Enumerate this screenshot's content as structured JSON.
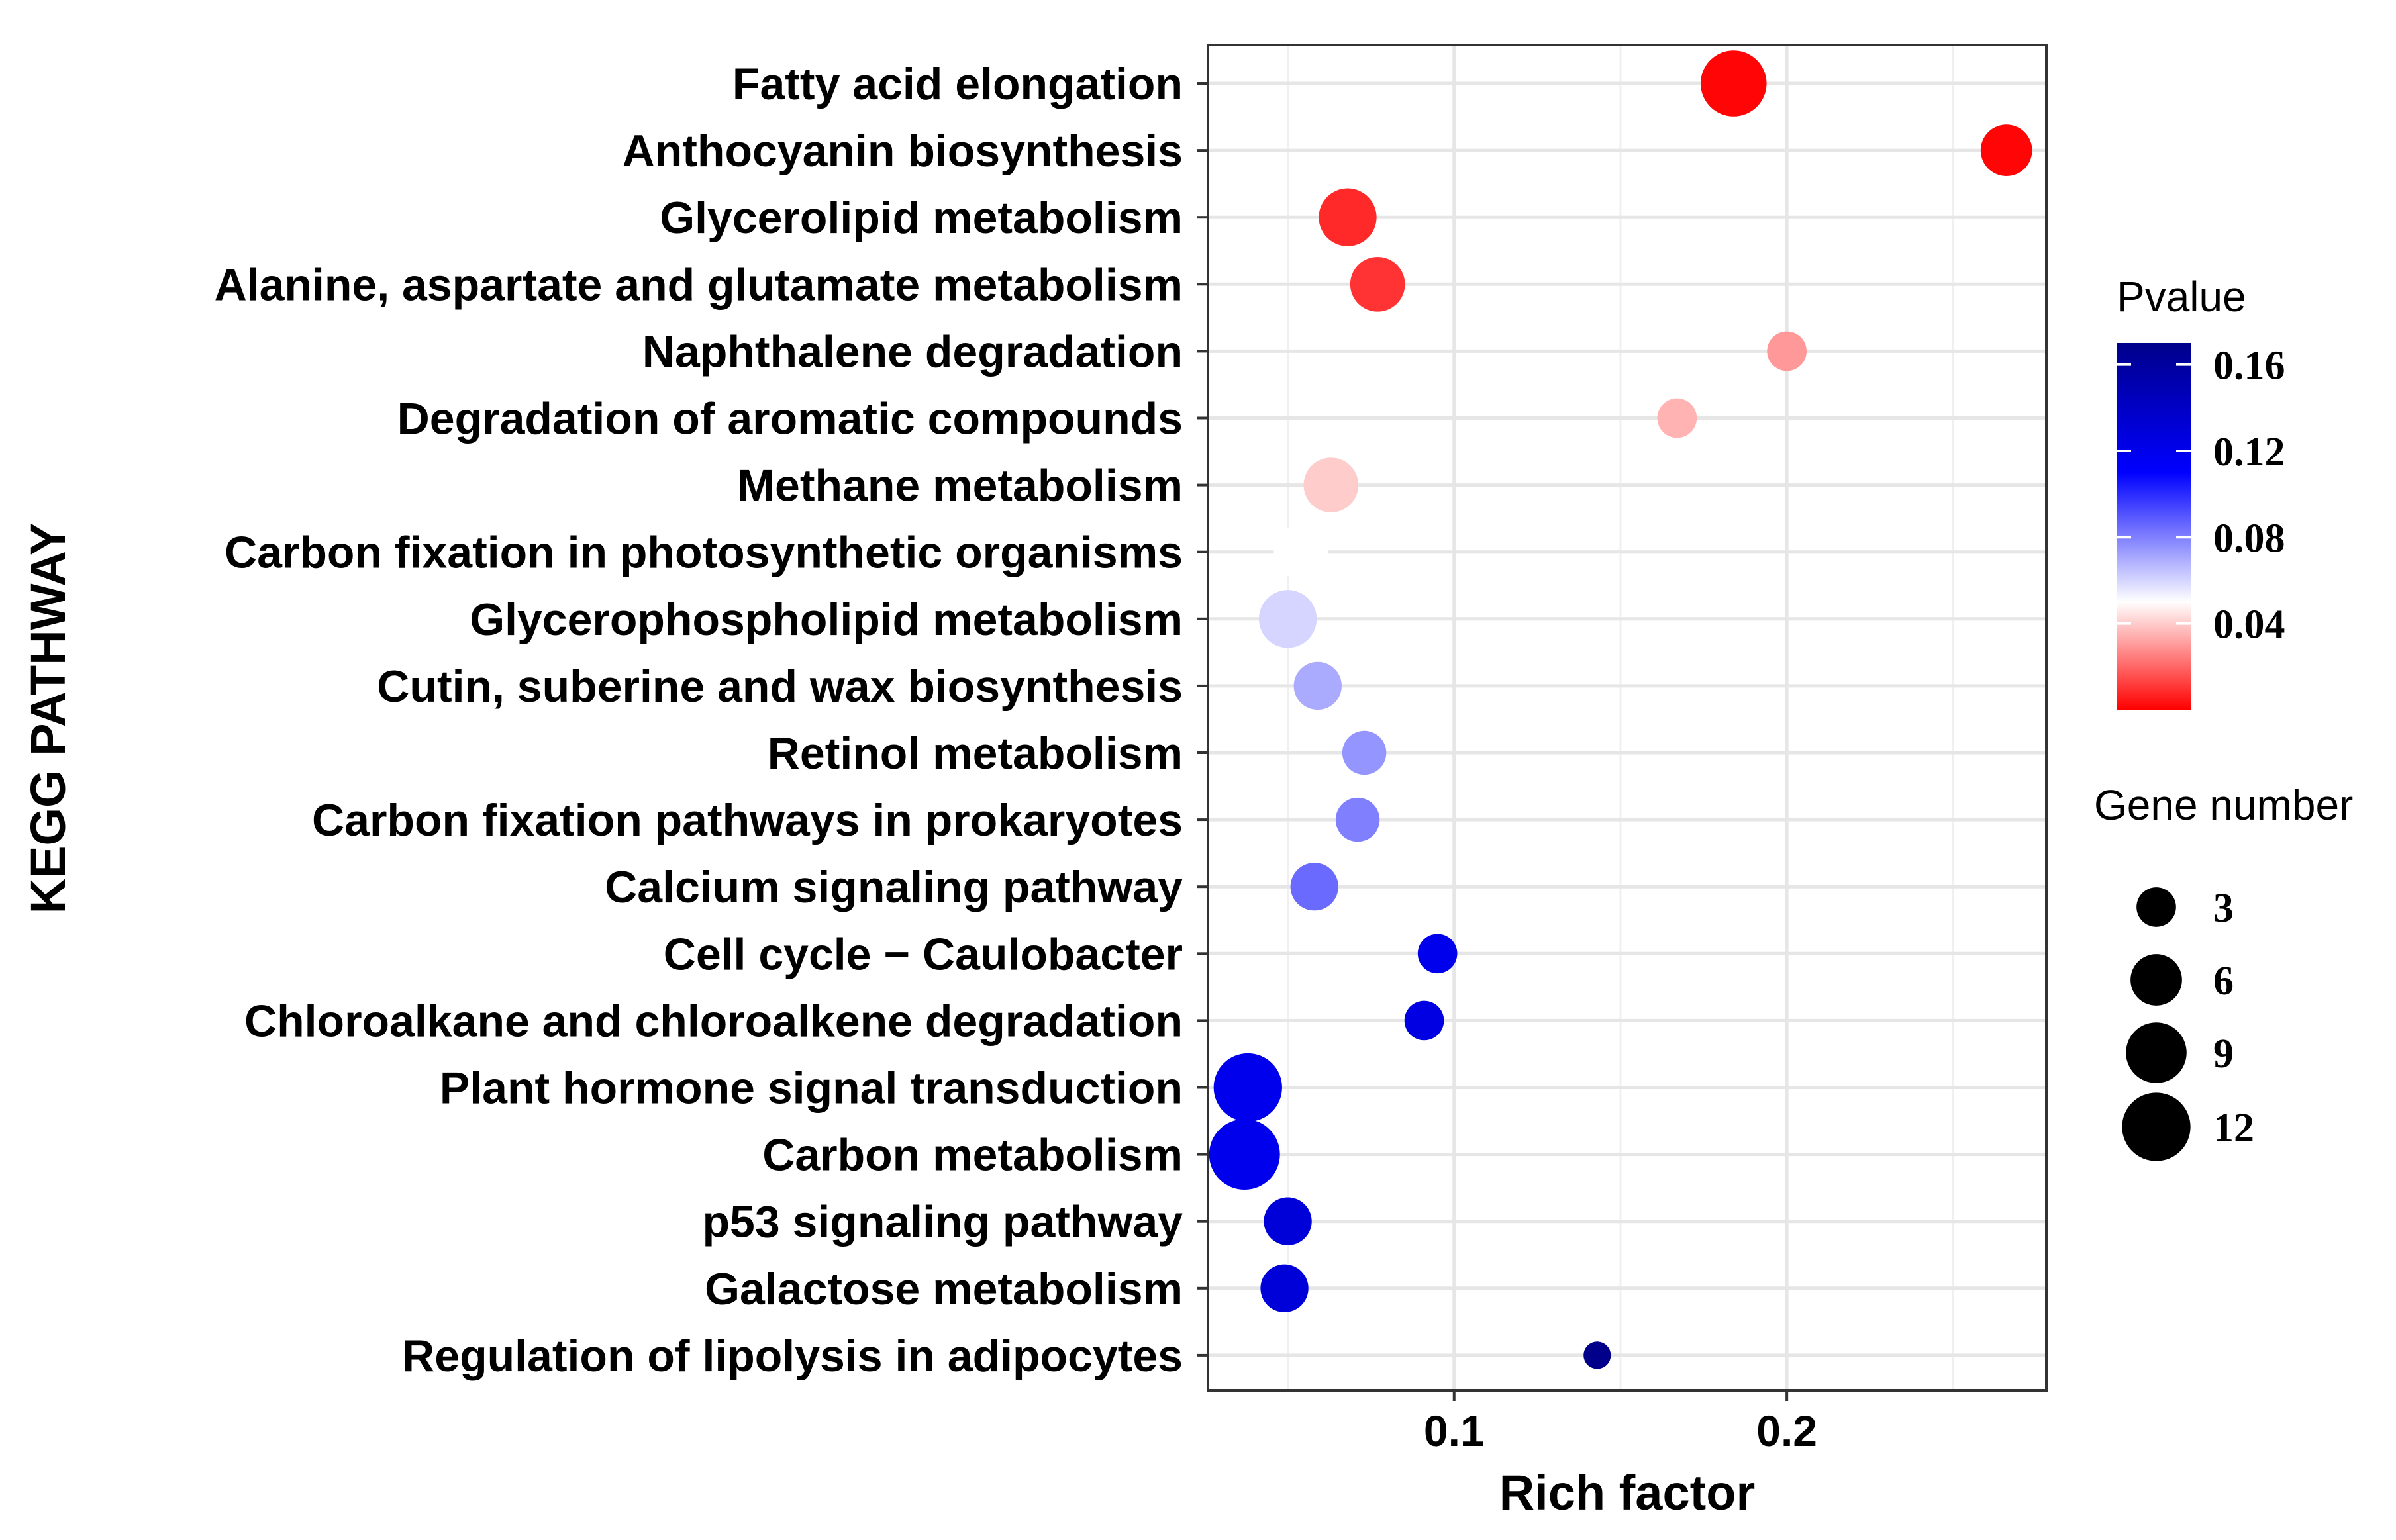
{
  "chart_data": {
    "type": "scatter",
    "title": "",
    "xlabel": "Rich factor",
    "ylabel": "KEGG PATHWAY",
    "xlim": [
      0.026,
      0.278
    ],
    "xticks": [
      0.1,
      0.2
    ],
    "xtick_labels": [
      "0.1",
      "0.2"
    ],
    "grid": true,
    "pathways": [
      "Fatty acid elongation",
      "Anthocyanin biosynthesis",
      "Glycerolipid metabolism",
      "Alanine, aspartate and glutamate metabolism",
      "Naphthalene degradation",
      "Degradation of aromatic compounds",
      "Methane metabolism",
      "Carbon fixation in photosynthetic organisms",
      "Glycerophospholipid metabolism",
      "Cutin, suberine and wax biosynthesis",
      "Retinol metabolism",
      "Carbon fixation pathways in prokaryotes",
      "Calcium signaling pathway",
      "Cell cycle − Caulobacter",
      "Chloroalkane and chloroalkene degradation",
      "Plant hormone signal transduction",
      "Carbon metabolism",
      "p53 signaling pathway",
      "Galactose metabolism",
      "Regulation of lipolysis in adipocytes"
    ],
    "rich_factor": [
      0.184,
      0.266,
      0.068,
      0.077,
      0.2,
      0.167,
      0.063,
      0.054,
      0.05,
      0.059,
      0.073,
      0.071,
      0.058,
      0.095,
      0.091,
      0.038,
      0.037,
      0.05,
      0.049,
      0.143
    ],
    "gene_number": [
      11,
      6,
      8,
      7,
      3,
      3,
      7,
      7,
      8,
      5,
      4,
      4,
      5,
      3,
      3,
      12,
      13,
      5,
      5,
      1
    ],
    "pvalue": [
      0.001,
      0.001,
      0.008,
      0.01,
      0.03,
      0.035,
      0.04,
      0.05,
      0.06,
      0.07,
      0.075,
      0.08,
      0.085,
      0.12,
      0.125,
      0.12,
      0.12,
      0.13,
      0.13,
      0.17
    ],
    "colorbar": {
      "title": "Pvalue",
      "min": 0.0,
      "max": 0.17,
      "ticks": [
        0.16,
        0.12,
        0.08,
        0.04
      ],
      "tick_labels": [
        "0.16",
        "0.12",
        "0.08",
        "0.04"
      ],
      "stops": [
        {
          "value": 0.0,
          "color": "#ff0000"
        },
        {
          "value": 0.05,
          "color": "#ffffff"
        },
        {
          "value": 0.11,
          "color": "#0000ff"
        },
        {
          "value": 0.17,
          "color": "#00008b"
        }
      ]
    },
    "size_legend": {
      "title": "Gene number",
      "values": [
        3,
        6,
        9,
        12
      ],
      "labels": [
        "3",
        "6",
        "9",
        "12"
      ]
    }
  }
}
